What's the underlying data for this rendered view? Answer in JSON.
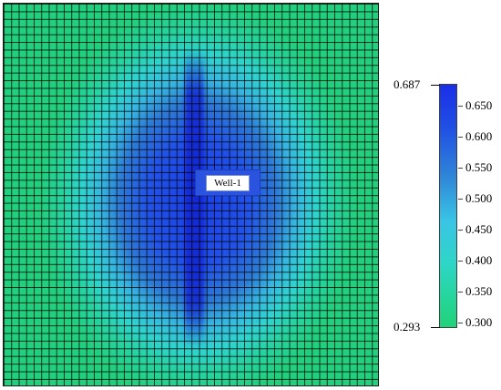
{
  "map": {
    "well_label": "Well-1"
  },
  "colorbar": {
    "max_label": "0.687",
    "min_label": "0.293",
    "ticks": [
      "0.650",
      "0.600",
      "0.550",
      "0.500",
      "0.450",
      "0.400",
      "0.350",
      "0.300"
    ],
    "colors": {
      "high": "#1a2ee8",
      "mid": "#39c4e6",
      "low": "#22d27a"
    }
  }
}
